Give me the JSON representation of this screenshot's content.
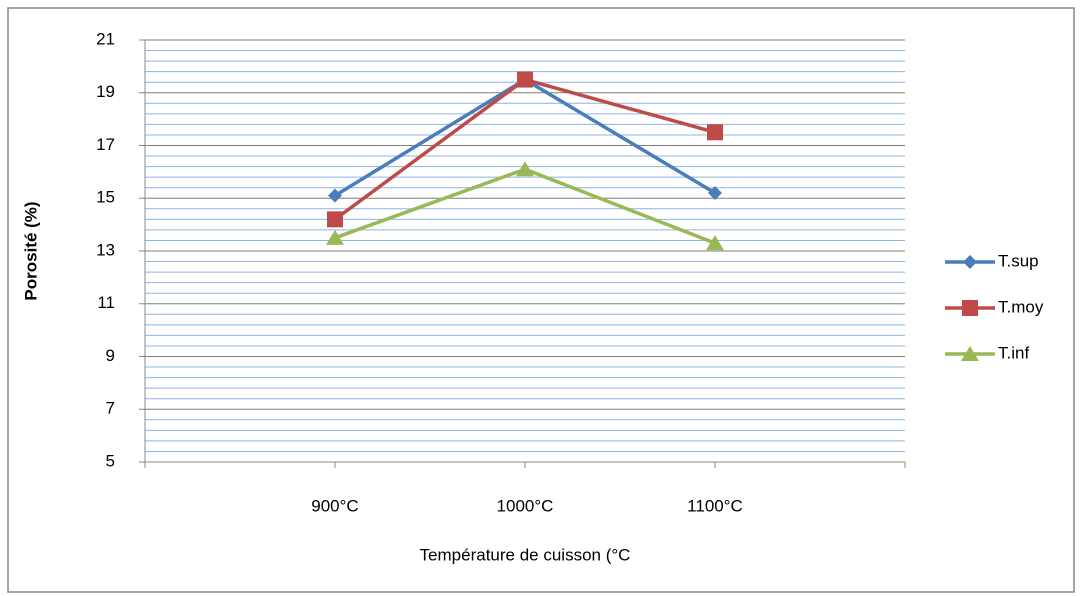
{
  "chart_data": {
    "type": "line",
    "xlabel": "Température de cuisson (°C",
    "ylabel": "Porosité (%)",
    "categories": [
      null,
      "900°C",
      "1000°C",
      "1100°C",
      null
    ],
    "series": [
      {
        "name": "T.sup",
        "color": "#4a7ebb",
        "marker": "diamond",
        "values": [
          null,
          15.1,
          19.5,
          15.2,
          null
        ]
      },
      {
        "name": "T.moy",
        "color": "#be4b48",
        "marker": "square",
        "values": [
          null,
          14.2,
          19.5,
          17.5,
          null
        ]
      },
      {
        "name": "T.inf",
        "color": "#98b954",
        "marker": "triangle",
        "values": [
          null,
          13.5,
          16.1,
          13.3,
          null
        ]
      }
    ],
    "ylim": [
      5,
      21
    ],
    "yticks": [
      5,
      7,
      9,
      11,
      13,
      15,
      17,
      19,
      21
    ],
    "grid": true,
    "minor_grid": true,
    "legend": "right"
  }
}
